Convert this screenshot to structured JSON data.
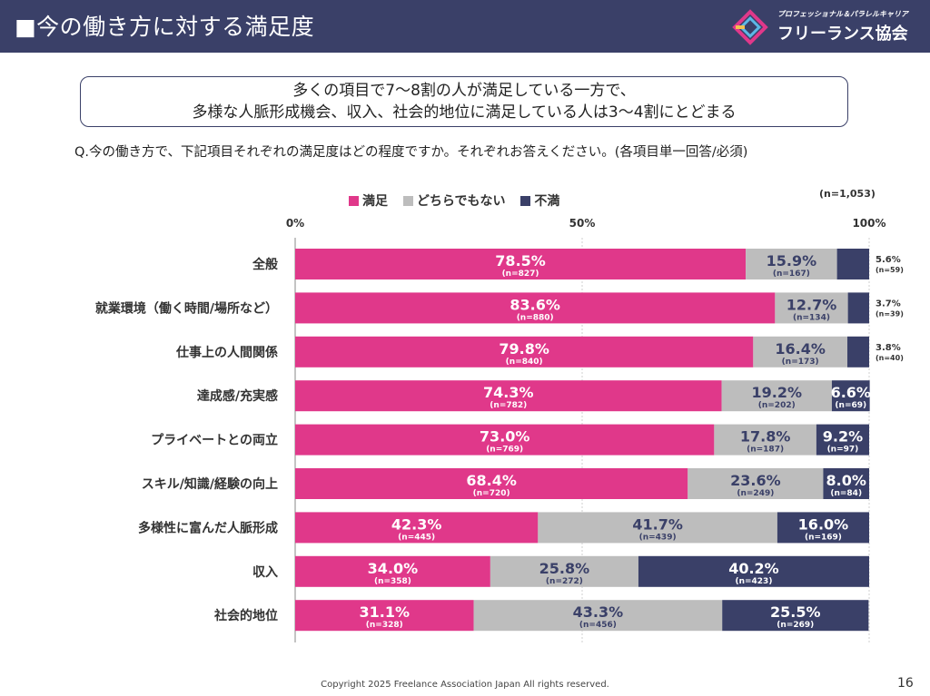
{
  "header": {
    "title": "■今の働き方に対する満足度"
  },
  "logo": {
    "tagline": "プロフェッショナル＆パラレルキャリア",
    "name": "フリーランス協会"
  },
  "summary": {
    "line1": "多くの項目で7～8割の人が満足している一方で、",
    "line2": "多様な人脈形成機会、収入、社会的地位に満足している人は3～4割にとどまる"
  },
  "question": "Q.今の働き方で、下記項目それぞれの満足度はどの程度ですか。それぞれお答えください。(各項目単一回答/必須)",
  "sample_size": "(n=1,053)",
  "footer": "Copyright 2025 Freelance Association Japan  All rights reserved.",
  "page_number": "16",
  "colors": {
    "header": "#3a4068",
    "satisfied": "#e0388a",
    "neutral": "#bdbdbd",
    "dissatisfied": "#3a4068"
  },
  "chart_data": {
    "type": "bar",
    "orientation": "horizontal",
    "stacked": true,
    "xlim": [
      0,
      100
    ],
    "tick_labels": [
      "0%",
      "50%",
      "100%"
    ],
    "legend_position": "top",
    "categories": [
      "全般",
      "就業環境（働く時間/場所など）",
      "仕事上の人間関係",
      "達成感/充実感",
      "プライベートとの両立",
      "スキル/知識/経験の向上",
      "多様性に富んだ人脈形成",
      "収入",
      "社会的地位"
    ],
    "series": [
      {
        "name": "満足",
        "values": [
          78.5,
          83.6,
          79.8,
          74.3,
          73.0,
          68.4,
          42.3,
          34.0,
          31.1
        ],
        "labels": [
          "78.5%",
          "83.6%",
          "79.8%",
          "74.3%",
          "73.0%",
          "68.4%",
          "42.3%",
          "34.0%",
          "31.1%"
        ],
        "counts": [
          "(n=827)",
          "(n=880)",
          "(n=840)",
          "(n=782)",
          "(n=769)",
          "(n=720)",
          "(n=445)",
          "(n=358)",
          "(n=328)"
        ]
      },
      {
        "name": "どちらでもない",
        "values": [
          15.9,
          12.7,
          16.4,
          19.2,
          17.8,
          23.6,
          41.7,
          25.8,
          43.3
        ],
        "labels": [
          "15.9%",
          "12.7%",
          "16.4%",
          "19.2%",
          "17.8%",
          "23.6%",
          "41.7%",
          "25.8%",
          "43.3%"
        ],
        "counts": [
          "(n=167)",
          "(n=134)",
          "(n=173)",
          "(n=202)",
          "(n=187)",
          "(n=249)",
          "(n=439)",
          "(n=272)",
          "(n=456)"
        ]
      },
      {
        "name": "不満",
        "values": [
          5.6,
          3.7,
          3.8,
          6.6,
          9.2,
          8.0,
          16.0,
          40.2,
          25.5
        ],
        "labels": [
          "5.6%",
          "3.7%",
          "3.8%",
          "6.6%",
          "9.2%",
          "8.0%",
          "16.0%",
          "40.2%",
          "25.5%"
        ],
        "counts": [
          "(n=59)",
          "(n=39)",
          "(n=40)",
          "(n=69)",
          "(n=97)",
          "(n=84)",
          "(n=169)",
          "(n=423)",
          "(n=269)"
        ]
      }
    ]
  }
}
